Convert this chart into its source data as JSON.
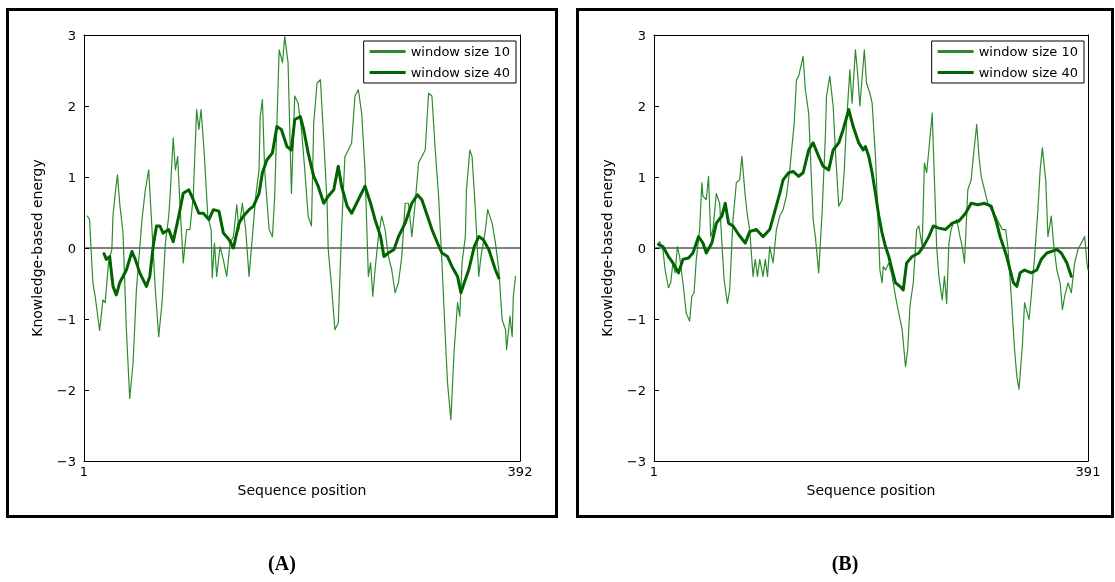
{
  "chart_data": [
    {
      "type": "line",
      "xlabel": "Sequence position",
      "ylabel": "Knowledge-based energy",
      "annotations": [
        "(A)"
      ],
      "xlim": [
        1,
        392
      ],
      "xticks": [
        1,
        392
      ],
      "ylim": [
        -3,
        3
      ],
      "yticks": [
        {
          "value": -3,
          "label": "−3"
        },
        {
          "value": -2,
          "label": "−2"
        },
        {
          "value": -1,
          "label": "−1"
        },
        0,
        1,
        2,
        3
      ],
      "grid": false,
      "legend": "top right",
      "marker": "none",
      "line_style": "solid",
      "ref_lines": [
        {
          "axis": "y",
          "value": 0,
          "color": "#000000"
        }
      ],
      "series": [
        {
          "name": "window size 10",
          "color": "#2e8b2e",
          "x": [
            4,
            6,
            8,
            9,
            11,
            15,
            18,
            20,
            23,
            26,
            27,
            29,
            31,
            33,
            36,
            39,
            42,
            45,
            48,
            53,
            56,
            59,
            62,
            65,
            68,
            71,
            74,
            77,
            78,
            81,
            83,
            85,
            87,
            90,
            93,
            96,
            99,
            102,
            104,
            106,
            109,
            112,
            115,
            116,
            118,
            120,
            123,
            126,
            129,
            132,
            135,
            138,
            140,
            143,
            146,
            149,
            152,
            155,
            158,
            159,
            161,
            163,
            167,
            170,
            172,
            176,
            179,
            181,
            184,
            187,
            190,
            193,
            196,
            199,
            202,
            205,
            207,
            210,
            213,
            216,
            219,
            220,
            223,
            226,
            229,
            232,
            235,
            238,
            241,
            244,
            247,
            250,
            253,
            256,
            258,
            260,
            262,
            265,
            268,
            271,
            274,
            277,
            280,
            283,
            286,
            289,
            292,
            295,
            298,
            301,
            304,
            307,
            310,
            313,
            316,
            319,
            322,
            325,
            327,
            330,
            333,
            336,
            338,
            340,
            343,
            344,
            347,
            349,
            352,
            355,
            357,
            361,
            363,
            367,
            370,
            373,
            376,
            379,
            380,
            383,
            385,
            386,
            388
          ],
          "values": [
            0.45,
            0.4,
            -0.21,
            -0.49,
            -0.68,
            -1.16,
            -0.73,
            -0.77,
            -0.21,
            -0.02,
            0.45,
            0.77,
            1.03,
            0.63,
            0.21,
            -1.15,
            -2.12,
            -1.62,
            -0.59,
            0.4,
            0.82,
            1.1,
            0.26,
            -0.59,
            -1.25,
            -0.77,
            0.07,
            0.45,
            0.68,
            1.55,
            1.1,
            1.29,
            0.63,
            -0.21,
            0.26,
            0.26,
            0.73,
            1.95,
            1.67,
            1.95,
            1.29,
            0.45,
            0.26,
            -0.42,
            0.07,
            -0.4,
            0.02,
            -0.17,
            -0.4,
            0.07,
            0.16,
            0.61,
            0.26,
            0.63,
            0.26,
            -0.4,
            0.16,
            0.73,
            1.1,
            1.85,
            2.09,
            1.1,
            0.26,
            0.16,
            0.73,
            2.79,
            2.61,
            2.98,
            2.61,
            0.77,
            2.14,
            2.04,
            1.67,
            1.1,
            0.45,
            0.31,
            1.76,
            2.32,
            2.37,
            1.53,
            0.63,
            -0.02,
            -0.54,
            -1.15,
            -1.06,
            0.26,
            1.29,
            1.38,
            1.48,
            2.14,
            2.23,
            1.9,
            1.1,
            -0.4,
            -0.21,
            -0.68,
            -0.31,
            0.16,
            0.45,
            0.26,
            -0.12,
            -0.31,
            -0.63,
            -0.49,
            -0.12,
            0.63,
            0.63,
            0.16,
            0.63,
            1.2,
            1.29,
            1.38,
            2.18,
            2.14,
            1.38,
            0.73,
            -0.21,
            -1.25,
            -1.9,
            -2.42,
            -1.43,
            -0.77,
            -0.96,
            -0.21,
            0.16,
            0.82,
            1.38,
            1.29,
            0.54,
            -0.4,
            -0.12,
            0.26,
            0.54,
            0.35,
            0.07,
            -0.31,
            -1.01,
            -1.15,
            -1.43,
            -0.96,
            -1.25,
            -0.68,
            -0.4
          ]
        },
        {
          "name": "window size 40",
          "color": "#006400",
          "x": [
            19,
            21,
            24,
            27,
            30,
            33,
            39,
            44,
            47,
            51,
            57,
            60,
            63,
            66,
            69,
            72,
            77,
            81,
            86,
            90,
            95,
            99,
            104,
            108,
            113,
            117,
            122,
            126,
            131,
            135,
            140,
            144,
            149,
            153,
            158,
            161,
            165,
            170,
            174,
            178,
            183,
            187,
            190,
            195,
            198,
            202,
            207,
            211,
            216,
            220,
            225,
            229,
            232,
            237,
            241,
            247,
            253,
            258,
            262,
            267,
            270,
            274,
            279,
            283,
            289,
            295,
            300,
            304,
            309,
            313,
            318,
            322,
            327,
            331,
            336,
            339,
            342,
            346,
            351,
            355,
            359,
            364,
            370,
            373
          ],
          "values": [
            -0.08,
            -0.16,
            -0.12,
            -0.54,
            -0.66,
            -0.49,
            -0.31,
            -0.05,
            -0.16,
            -0.35,
            -0.54,
            -0.4,
            0.02,
            0.31,
            0.31,
            0.21,
            0.26,
            0.09,
            0.45,
            0.77,
            0.82,
            0.68,
            0.49,
            0.49,
            0.4,
            0.54,
            0.52,
            0.21,
            0.12,
            0.0,
            0.35,
            0.45,
            0.54,
            0.59,
            0.77,
            1.06,
            1.24,
            1.34,
            1.71,
            1.67,
            1.43,
            1.38,
            1.81,
            1.85,
            1.67,
            1.34,
            1.01,
            0.87,
            0.63,
            0.73,
            0.82,
            1.15,
            0.87,
            0.59,
            0.49,
            0.68,
            0.87,
            0.63,
            0.4,
            0.16,
            -0.12,
            -0.07,
            -0.02,
            0.16,
            0.35,
            0.63,
            0.75,
            0.68,
            0.45,
            0.26,
            0.07,
            -0.07,
            -0.12,
            -0.26,
            -0.4,
            -0.63,
            -0.49,
            -0.31,
            0.02,
            0.16,
            0.12,
            -0.02,
            -0.31,
            -0.42
          ]
        }
      ]
    },
    {
      "type": "line",
      "xlabel": "Sequence position",
      "ylabel": "Knowledge-based energy",
      "annotations": [
        "(B)"
      ],
      "xlim": [
        1,
        391
      ],
      "xticks": [
        1,
        391
      ],
      "ylim": [
        -3,
        3
      ],
      "yticks": [
        {
          "value": -3,
          "label": "−3"
        },
        {
          "value": -2,
          "label": "−2"
        },
        {
          "value": -1,
          "label": "−1"
        },
        0,
        1,
        2,
        3
      ],
      "grid": false,
      "legend": "top right",
      "marker": "none",
      "line_style": "solid",
      "ref_lines": [
        {
          "axis": "y",
          "value": 0,
          "color": "#000000"
        }
      ],
      "series": [
        {
          "name": "window size 10",
          "color": "#2e8b2e",
          "x": [
            5,
            6,
            9,
            11,
            14,
            16,
            18,
            20,
            22,
            24,
            27,
            30,
            33,
            35,
            37,
            39,
            42,
            44,
            45,
            48,
            50,
            52,
            54,
            57,
            60,
            62,
            64,
            67,
            69,
            72,
            75,
            78,
            80,
            83,
            85,
            87,
            90,
            92,
            94,
            96,
            99,
            101,
            103,
            105,
            108,
            111,
            114,
            117,
            120,
            123,
            127,
            129,
            131,
            135,
            137,
            140,
            144,
            146,
            149,
            152,
            155,
            156,
            159,
            162,
            164,
            167,
            170,
            172,
            174,
            177,
            179,
            182,
            184,
            186,
            190,
            192,
            195,
            197,
            200,
            202,
            204,
            206,
            207,
            209,
            212,
            215,
            218,
            221,
            224,
            227,
            229,
            231,
            234,
            237,
            239,
            242,
            244,
            246,
            248,
            251,
            253,
            255,
            257,
            260,
            262,
            264,
            266,
            268,
            270,
            273,
            276,
            278,
            280,
            283,
            286,
            288,
            291,
            293,
            295,
            298,
            301,
            304,
            308,
            311,
            314,
            317,
            319,
            322,
            325,
            327,
            329,
            332,
            334,
            338,
            340,
            343,
            346,
            348,
            350,
            353,
            355,
            358,
            360,
            363,
            366,
            368,
            370,
            373,
            376,
            379,
            382,
            385,
            388,
            390,
            391
          ],
          "values": [
            0.07,
            0.09,
            -0.02,
            -0.31,
            -0.56,
            -0.49,
            -0.21,
            -0.35,
            0.02,
            -0.12,
            -0.49,
            -0.92,
            -1.03,
            -0.68,
            -0.63,
            -0.16,
            0.26,
            0.92,
            0.73,
            0.68,
            1.01,
            0.16,
            0.26,
            0.77,
            0.63,
            0.07,
            -0.45,
            -0.78,
            -0.59,
            0.4,
            0.92,
            0.96,
            1.29,
            0.73,
            0.45,
            0.26,
            -0.4,
            -0.16,
            -0.4,
            -0.16,
            -0.4,
            -0.16,
            -0.4,
            0.02,
            -0.21,
            0.26,
            0.45,
            0.54,
            0.73,
            1.1,
            1.76,
            2.37,
            2.42,
            2.7,
            2.23,
            1.9,
            0.4,
            0.16,
            -0.35,
            0.49,
            1.57,
            2.14,
            2.42,
            2.0,
            1.38,
            0.59,
            0.68,
            1.1,
            1.76,
            2.51,
            2.04,
            2.79,
            2.46,
            2.0,
            2.79,
            2.32,
            2.18,
            2.04,
            1.29,
            0.54,
            -0.31,
            -0.49,
            -0.26,
            -0.31,
            -0.21,
            -0.4,
            -0.68,
            -0.92,
            -1.15,
            -1.67,
            -1.43,
            -0.82,
            -0.49,
            0.26,
            0.31,
            0.02,
            1.2,
            1.06,
            1.38,
            1.9,
            0.96,
            0.02,
            -0.4,
            -0.73,
            -0.4,
            -0.78,
            0.07,
            0.26,
            0.35,
            0.4,
            0.16,
            0.02,
            -0.21,
            0.82,
            0.96,
            1.29,
            1.74,
            1.29,
            1.01,
            0.82,
            0.63,
            0.54,
            0.45,
            0.35,
            0.26,
            0.26,
            0.02,
            -0.68,
            -1.43,
            -1.8,
            -1.99,
            -1.38,
            -0.77,
            -1.01,
            -0.68,
            -0.12,
            0.54,
            1.1,
            1.41,
            0.96,
            0.16,
            0.45,
            0.07,
            -0.31,
            -0.49,
            -0.87,
            -0.68,
            -0.49,
            -0.63,
            -0.21,
            -0.02,
            0.07,
            0.16,
            -0.21,
            -0.31
          ]
        },
        {
          "name": "window size 40",
          "color": "#006400",
          "x": [
            5,
            9,
            14,
            18,
            23,
            27,
            32,
            36,
            41,
            45,
            48,
            53,
            57,
            62,
            65,
            68,
            72,
            77,
            83,
            87,
            93,
            99,
            105,
            110,
            114,
            117,
            122,
            126,
            131,
            135,
            140,
            144,
            149,
            153,
            158,
            162,
            167,
            171,
            176,
            180,
            185,
            189,
            191,
            194,
            197,
            200,
            203,
            206,
            209,
            212,
            215,
            218,
            222,
            225,
            228,
            233,
            239,
            243,
            248,
            252,
            257,
            263,
            269,
            275,
            281,
            286,
            292,
            298,
            304,
            309,
            312,
            315,
            318,
            321,
            324,
            327,
            330,
            334,
            340,
            345,
            349,
            354,
            358,
            363,
            367,
            372,
            376
          ],
          "values": [
            0.05,
            0.02,
            -0.12,
            -0.21,
            -0.35,
            -0.16,
            -0.14,
            -0.07,
            0.16,
            0.07,
            -0.07,
            0.07,
            0.35,
            0.45,
            0.63,
            0.35,
            0.31,
            0.19,
            0.07,
            0.23,
            0.26,
            0.16,
            0.26,
            0.54,
            0.77,
            0.96,
            1.06,
            1.08,
            1.01,
            1.06,
            1.38,
            1.48,
            1.29,
            1.15,
            1.1,
            1.38,
            1.48,
            1.67,
            1.95,
            1.71,
            1.48,
            1.38,
            1.43,
            1.29,
            1.06,
            0.77,
            0.45,
            0.21,
            0.02,
            -0.12,
            -0.31,
            -0.49,
            -0.54,
            -0.59,
            -0.21,
            -0.12,
            -0.07,
            0.02,
            0.16,
            0.31,
            0.28,
            0.26,
            0.35,
            0.38,
            0.49,
            0.63,
            0.61,
            0.63,
            0.59,
            0.35,
            0.16,
            0.02,
            -0.12,
            -0.31,
            -0.49,
            -0.54,
            -0.35,
            -0.31,
            -0.35,
            -0.31,
            -0.16,
            -0.07,
            -0.05,
            -0.02,
            -0.07,
            -0.21,
            -0.4
          ]
        }
      ]
    }
  ]
}
